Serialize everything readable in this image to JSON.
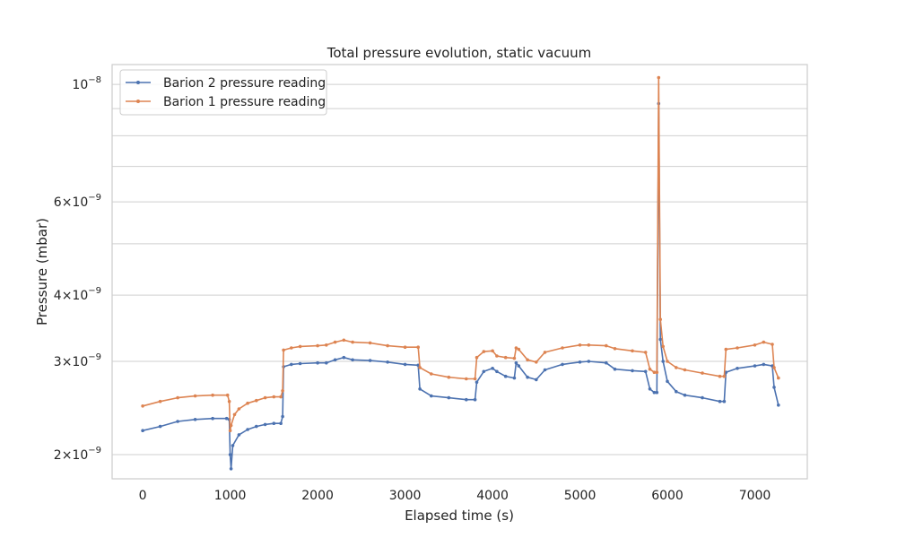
{
  "chart_data": {
    "type": "line",
    "title": "Total pressure evolution, static vacuum",
    "xlabel": "Elapsed time (s)",
    "ylabel": "Pressure (mbar)",
    "xlim": [
      -350,
      7600
    ],
    "ylim": [
      1.8e-09,
      1.09e-08
    ],
    "yscale": "log",
    "x_ticks": [
      0,
      1000,
      2000,
      3000,
      4000,
      5000,
      6000,
      7000
    ],
    "x_tick_labels": [
      "0",
      "1000",
      "2000",
      "3000",
      "4000",
      "5000",
      "6000",
      "7000"
    ],
    "y_ticks": [
      2e-09,
      3e-09,
      4e-09,
      6e-09,
      1e-08
    ],
    "y_tick_labels": [
      {
        "mant": "2",
        "exp": "−9"
      },
      {
        "mant": "3",
        "exp": "−9"
      },
      {
        "mant": "4",
        "exp": "−9"
      },
      {
        "mant": "6",
        "exp": "−9"
      },
      {
        "mant": "",
        "exp": "−8"
      }
    ],
    "y_minor_ticks": [
      5e-09,
      7e-09,
      8e-09,
      9e-09
    ],
    "grid": true,
    "legend_position": "top-left",
    "series": [
      {
        "name": "Barion 2 pressure reading",
        "color": "#4c72b0",
        "points": [
          [
            0,
            2.22e-09
          ],
          [
            200,
            2.26e-09
          ],
          [
            400,
            2.31e-09
          ],
          [
            600,
            2.33e-09
          ],
          [
            800,
            2.34e-09
          ],
          [
            960,
            2.34e-09
          ],
          [
            990,
            2.33e-09
          ],
          [
            1000,
            2e-09
          ],
          [
            1010,
            1.88e-09
          ],
          [
            1030,
            2.08e-09
          ],
          [
            1100,
            2.18e-09
          ],
          [
            1200,
            2.23e-09
          ],
          [
            1300,
            2.26e-09
          ],
          [
            1400,
            2.28e-09
          ],
          [
            1500,
            2.29e-09
          ],
          [
            1580,
            2.29e-09
          ],
          [
            1600,
            2.36e-09
          ],
          [
            1610,
            2.93e-09
          ],
          [
            1700,
            2.96e-09
          ],
          [
            1800,
            2.97e-09
          ],
          [
            2000,
            2.98e-09
          ],
          [
            2100,
            2.98e-09
          ],
          [
            2200,
            3.02e-09
          ],
          [
            2300,
            3.05e-09
          ],
          [
            2400,
            3.02e-09
          ],
          [
            2600,
            3.01e-09
          ],
          [
            2800,
            2.99e-09
          ],
          [
            3000,
            2.96e-09
          ],
          [
            3150,
            2.95e-09
          ],
          [
            3170,
            2.66e-09
          ],
          [
            3300,
            2.58e-09
          ],
          [
            3500,
            2.56e-09
          ],
          [
            3700,
            2.54e-09
          ],
          [
            3800,
            2.54e-09
          ],
          [
            3820,
            2.74e-09
          ],
          [
            3900,
            2.87e-09
          ],
          [
            4000,
            2.91e-09
          ],
          [
            4050,
            2.87e-09
          ],
          [
            4150,
            2.81e-09
          ],
          [
            4250,
            2.79e-09
          ],
          [
            4270,
            2.98e-09
          ],
          [
            4300,
            2.94e-09
          ],
          [
            4400,
            2.8e-09
          ],
          [
            4500,
            2.77e-09
          ],
          [
            4600,
            2.89e-09
          ],
          [
            4800,
            2.96e-09
          ],
          [
            5000,
            2.99e-09
          ],
          [
            5100,
            3e-09
          ],
          [
            5300,
            2.98e-09
          ],
          [
            5400,
            2.9e-09
          ],
          [
            5600,
            2.88e-09
          ],
          [
            5750,
            2.87e-09
          ],
          [
            5800,
            2.66e-09
          ],
          [
            5850,
            2.62e-09
          ],
          [
            5880,
            2.62e-09
          ],
          [
            5900,
            9.2e-09
          ],
          [
            5920,
            3.3e-09
          ],
          [
            5950,
            3e-09
          ],
          [
            6000,
            2.75e-09
          ],
          [
            6100,
            2.63e-09
          ],
          [
            6200,
            2.59e-09
          ],
          [
            6400,
            2.56e-09
          ],
          [
            6600,
            2.52e-09
          ],
          [
            6650,
            2.52e-09
          ],
          [
            6670,
            2.86e-09
          ],
          [
            6800,
            2.91e-09
          ],
          [
            7000,
            2.94e-09
          ],
          [
            7100,
            2.96e-09
          ],
          [
            7200,
            2.94e-09
          ],
          [
            7220,
            2.68e-09
          ],
          [
            7270,
            2.48e-09
          ]
        ]
      },
      {
        "name": "Barion 1 pressure reading",
        "color": "#dd8452",
        "points": [
          [
            0,
            2.47e-09
          ],
          [
            200,
            2.52e-09
          ],
          [
            400,
            2.56e-09
          ],
          [
            600,
            2.58e-09
          ],
          [
            800,
            2.59e-09
          ],
          [
            970,
            2.59e-09
          ],
          [
            990,
            2.52e-09
          ],
          [
            1000,
            2.22e-09
          ],
          [
            1010,
            2.27e-09
          ],
          [
            1050,
            2.38e-09
          ],
          [
            1100,
            2.44e-09
          ],
          [
            1200,
            2.5e-09
          ],
          [
            1300,
            2.53e-09
          ],
          [
            1400,
            2.56e-09
          ],
          [
            1500,
            2.57e-09
          ],
          [
            1580,
            2.57e-09
          ],
          [
            1600,
            2.64e-09
          ],
          [
            1610,
            3.15e-09
          ],
          [
            1700,
            3.18e-09
          ],
          [
            1800,
            3.2e-09
          ],
          [
            2000,
            3.21e-09
          ],
          [
            2100,
            3.22e-09
          ],
          [
            2200,
            3.26e-09
          ],
          [
            2300,
            3.29e-09
          ],
          [
            2400,
            3.26e-09
          ],
          [
            2600,
            3.25e-09
          ],
          [
            2800,
            3.21e-09
          ],
          [
            3000,
            3.19e-09
          ],
          [
            3150,
            3.19e-09
          ],
          [
            3170,
            2.92e-09
          ],
          [
            3300,
            2.84e-09
          ],
          [
            3500,
            2.8e-09
          ],
          [
            3700,
            2.78e-09
          ],
          [
            3800,
            2.78e-09
          ],
          [
            3820,
            3.05e-09
          ],
          [
            3900,
            3.13e-09
          ],
          [
            4000,
            3.14e-09
          ],
          [
            4050,
            3.07e-09
          ],
          [
            4150,
            3.05e-09
          ],
          [
            4250,
            3.04e-09
          ],
          [
            4270,
            3.18e-09
          ],
          [
            4300,
            3.16e-09
          ],
          [
            4400,
            3.02e-09
          ],
          [
            4500,
            2.99e-09
          ],
          [
            4600,
            3.12e-09
          ],
          [
            4800,
            3.18e-09
          ],
          [
            5000,
            3.22e-09
          ],
          [
            5100,
            3.22e-09
          ],
          [
            5300,
            3.21e-09
          ],
          [
            5400,
            3.17e-09
          ],
          [
            5600,
            3.14e-09
          ],
          [
            5750,
            3.12e-09
          ],
          [
            5800,
            2.9e-09
          ],
          [
            5850,
            2.86e-09
          ],
          [
            5880,
            2.86e-09
          ],
          [
            5900,
            1.03e-08
          ],
          [
            5920,
            3.6e-09
          ],
          [
            5950,
            3.2e-09
          ],
          [
            6000,
            3e-09
          ],
          [
            6100,
            2.92e-09
          ],
          [
            6200,
            2.89e-09
          ],
          [
            6400,
            2.85e-09
          ],
          [
            6600,
            2.81e-09
          ],
          [
            6650,
            2.81e-09
          ],
          [
            6670,
            3.16e-09
          ],
          [
            6800,
            3.18e-09
          ],
          [
            7000,
            3.22e-09
          ],
          [
            7100,
            3.26e-09
          ],
          [
            7200,
            3.23e-09
          ],
          [
            7220,
            2.92e-09
          ],
          [
            7270,
            2.79e-09
          ]
        ]
      }
    ]
  }
}
